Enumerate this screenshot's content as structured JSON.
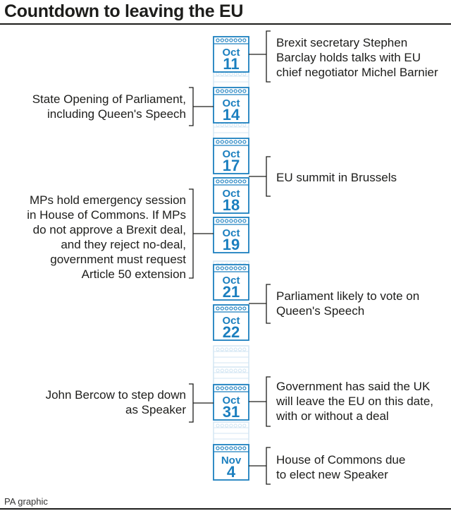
{
  "title": "Countdown to leaving the EU",
  "credit": "PA graphic",
  "calendar": [
    {
      "month": "Oct",
      "day": "11"
    },
    {
      "month": "Oct",
      "day": "14"
    },
    {
      "month": "Oct",
      "day": "17"
    },
    {
      "month": "Oct",
      "day": "18"
    },
    {
      "month": "Oct",
      "day": "19"
    },
    {
      "month": "Oct",
      "day": "21"
    },
    {
      "month": "Oct",
      "day": "22"
    },
    {
      "month": "Oct",
      "day": "31"
    },
    {
      "month": "Nov",
      "day": "4"
    }
  ],
  "events": [
    {
      "side": "right",
      "lines": [
        "Brexit secretary Stephen",
        "Barclay holds talks with EU",
        "chief negotiator Michel Barnier"
      ]
    },
    {
      "side": "left",
      "lines": [
        "State Opening of Parliament,",
        "including Queen's Speech"
      ]
    },
    {
      "side": "right",
      "lines": [
        "EU summit in Brussels"
      ]
    },
    {
      "side": "left",
      "lines": [
        "MPs hold emergency session",
        "in House of Commons. If MPs",
        "do not approve a Brexit deal,",
        "and they reject no-deal,",
        "government must request",
        "Article 50 extension"
      ]
    },
    {
      "side": "right",
      "lines": [
        "Parliament likely to vote on",
        "Queen's Speech"
      ]
    },
    {
      "side": "left",
      "lines": [
        "John Bercow to step down",
        "as Speaker"
      ]
    },
    {
      "side": "right",
      "lines": [
        "Government has said the UK",
        "will leave the EU on this date,",
        "with or without a deal"
      ]
    },
    {
      "side": "right",
      "lines": [
        "House of Commons due",
        "to elect new Speaker"
      ]
    }
  ],
  "colors": {
    "accent": "#1b7fbf",
    "faded": "#d3e6f3",
    "ink": "#1d1d1b"
  }
}
